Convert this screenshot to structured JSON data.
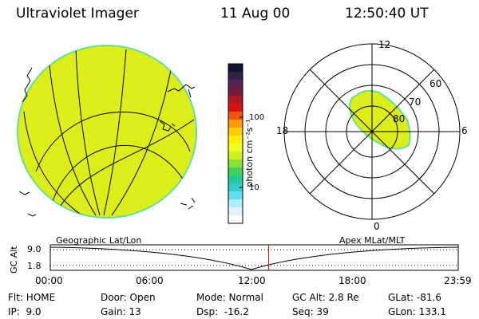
{
  "header": {
    "instrument": "Ultraviolet Imager",
    "date": "11 Aug 00",
    "time": "12:50:40 UT"
  },
  "colorbar": {
    "unit_label": "photon cm⁻²s⁻¹",
    "tick_labels": [
      "100",
      "10"
    ],
    "colors": [
      "#111133",
      "#332244",
      "#552255",
      "#771a3a",
      "#aa1a22",
      "#dd1111",
      "#ee5511",
      "#ff9900",
      "#ffcc00",
      "#ffee00",
      "#eeff22",
      "#ccf020",
      "#88e030",
      "#44d060",
      "#22cc99",
      "#33cccc",
      "#66ddee",
      "#aaeeff",
      "#ddf4ff",
      "#ffffff"
    ]
  },
  "polar_plot": {
    "mlt_labels": {
      "top": "12",
      "left": "18",
      "right": "6",
      "bottom": "0"
    },
    "lat_labels": [
      "60",
      "70",
      "80"
    ]
  },
  "subtitles": {
    "left": "Geographic Lat/Lon",
    "right": "Apex MLat/MLT"
  },
  "altitude_strip": {
    "axis_label": "GC Alt",
    "y_ticks": [
      "9.0",
      "1.8"
    ],
    "x_ticks": [
      "00:00",
      "06:00",
      "12:00",
      "18:00",
      "23:59"
    ],
    "current_time_fraction": 0.535
  },
  "info": {
    "rows": [
      [
        "Flt: HOME",
        "Door: Open",
        "Mode: Normal",
        "GC Alt: 2.8 Re",
        "GLat: -81.6"
      ],
      [
        "IP:  9.0",
        "Gain: 13",
        "Dsp:  -16.2",
        "Seq: 39",
        "GLon: 133.1"
      ]
    ]
  },
  "colors": {
    "aurora_fill": "#dcee1a",
    "aurora_edge": "#66dd99",
    "time_marker": "#cc0000"
  }
}
